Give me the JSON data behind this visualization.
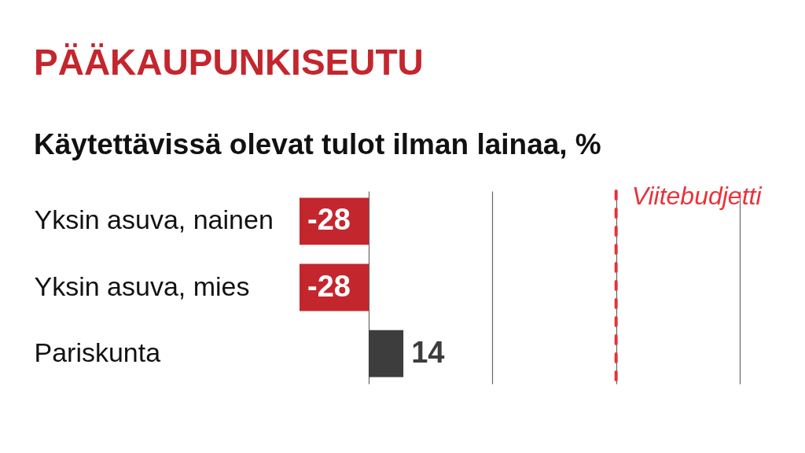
{
  "chart_data": {
    "type": "bar",
    "orientation": "horizontal",
    "title": "PÄÄKAUPUNKISEUTU",
    "subtitle": "Käytettävissä olevat tulot ilman lainaa, %",
    "categories": [
      "Yksin asuva, nainen",
      "Yksin asuva, mies",
      "Pariskunta"
    ],
    "values": [
      -28,
      -28,
      14
    ],
    "colors": [
      "#c4262e",
      "#c4262e",
      "#3d3d3d"
    ],
    "data_labels": true,
    "xlim": [
      -28,
      150
    ],
    "xticks": [
      {
        "value": 0,
        "label": null
      },
      {
        "value": 50,
        "label": null
      },
      {
        "value": 100,
        "label": null
      },
      {
        "value": 150,
        "label": null
      }
    ],
    "grid": "x",
    "tick_labels": "y",
    "ref_lines": [
      {
        "axis": "x",
        "value": 100,
        "label": "Viitebudjetti",
        "color": "#e8333a",
        "line_style": "dashed"
      }
    ]
  }
}
